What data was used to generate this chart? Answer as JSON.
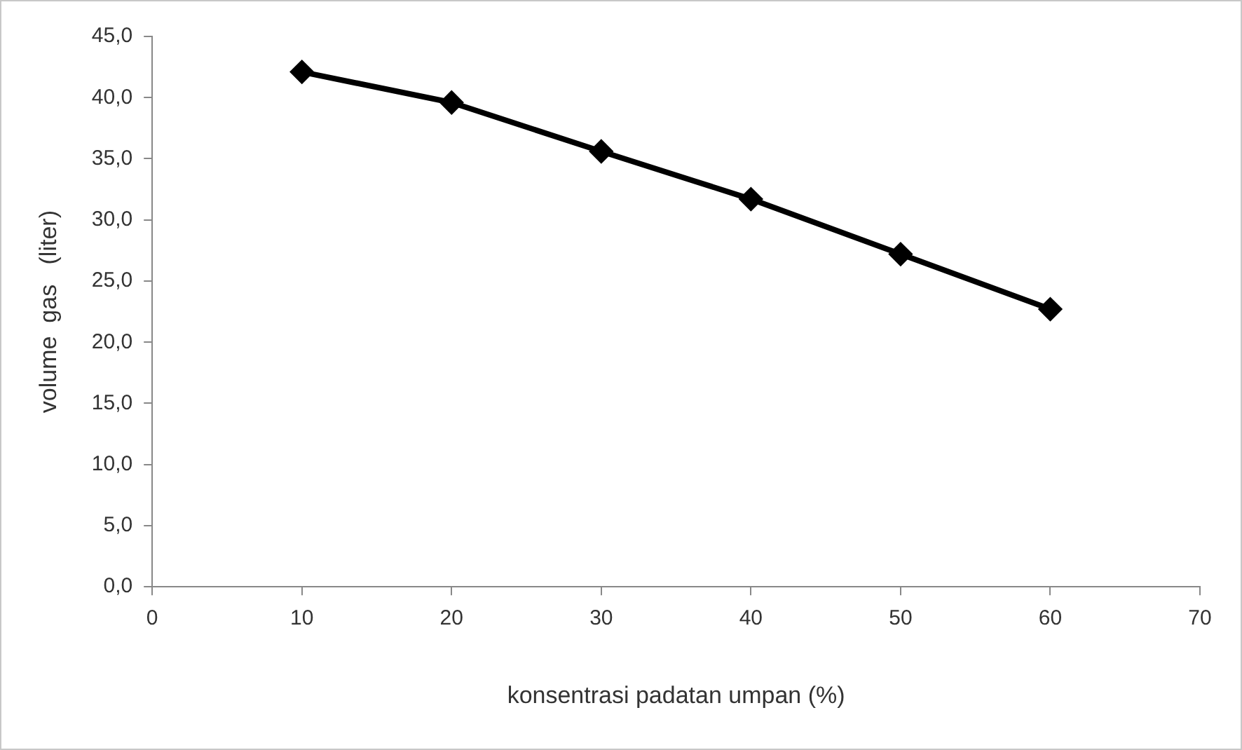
{
  "chart_data": {
    "type": "line",
    "xlabel": "konsentrasi padatan umpan (%)",
    "ylabel": "volume  gas   (liter)",
    "x": [
      10,
      20,
      30,
      40,
      50,
      60
    ],
    "series": [
      {
        "color": "#000000",
        "values": [
          42.1,
          39.6,
          35.6,
          31.7,
          27.2,
          22.7
        ]
      }
    ],
    "xlim": [
      0,
      70
    ],
    "xticks": [
      0,
      10,
      20,
      30,
      40,
      50,
      60,
      70
    ],
    "ylim": [
      0,
      45
    ],
    "yticks": [
      {
        "value": 0,
        "label": "0,0"
      },
      {
        "value": 5,
        "label": "5,0"
      },
      {
        "value": 10,
        "label": "10,0"
      },
      {
        "value": 15,
        "label": "15,0"
      },
      {
        "value": 20,
        "label": "20,0"
      },
      {
        "value": 25,
        "label": "25,0"
      },
      {
        "value": 30,
        "label": "30,0"
      },
      {
        "value": 35,
        "label": "35,0"
      },
      {
        "value": 40,
        "label": "40,0"
      },
      {
        "value": 45,
        "label": "45,0"
      }
    ],
    "grid": false,
    "legend": false,
    "marker": "diamond",
    "line_style": "solid"
  }
}
